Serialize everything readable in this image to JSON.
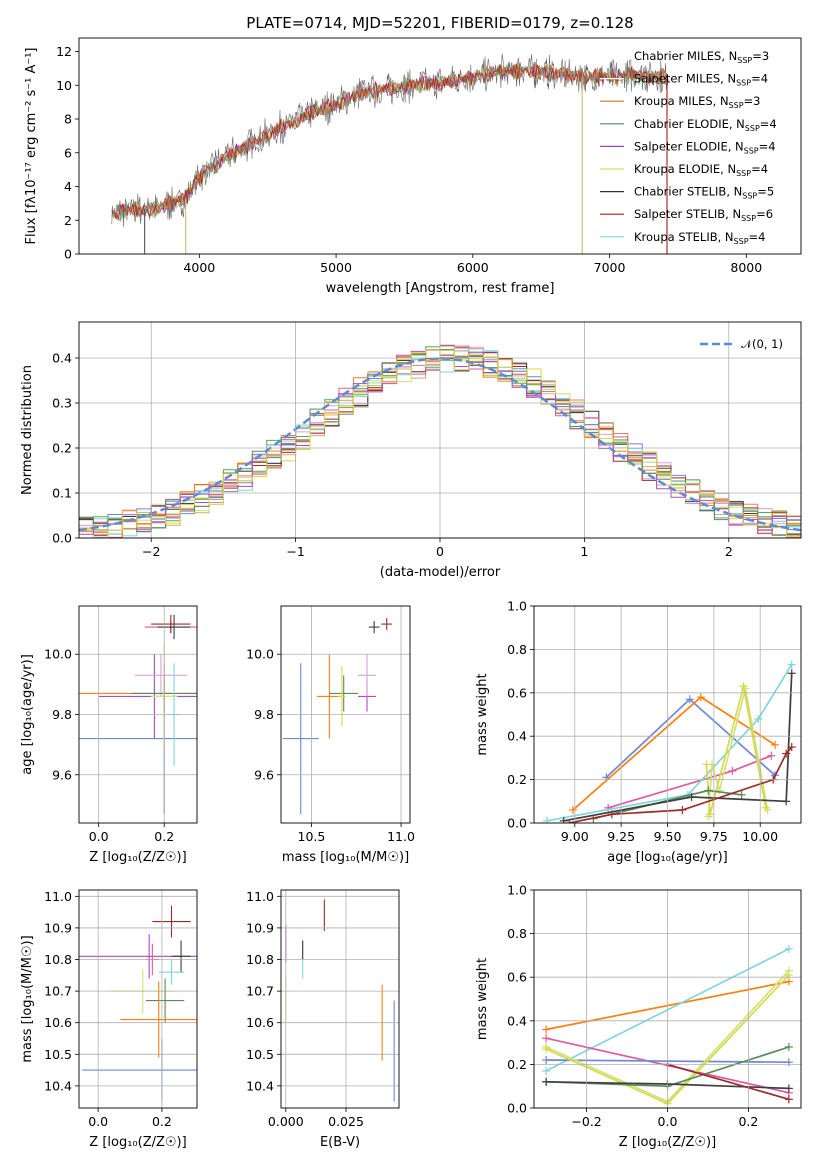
{
  "figure": {
    "title": "PLATE=0714, MJD=52201, FIBERID=0179, z=0.128"
  },
  "colors": {
    "series": [
      "#e08070",
      "#4caf50",
      "#6e87d8",
      "#d9a0d8",
      "#c9b458",
      "#9e2b2b",
      "#3f3f3f",
      "#e05aa0",
      "#7fd6dc",
      "#ff7f0e",
      "#d3e07a",
      "#5a8a5a",
      "#b04ac0",
      "#d8d84a"
    ],
    "legend_colors": [
      "#c07a2a",
      "#4e8a5c",
      "#9b47b3",
      "#d9d96a",
      "#333333",
      "#b01a1a",
      "#7fd6dc"
    ],
    "normal_line": "#5b8bd6"
  },
  "chart_data": [
    {
      "id": "spectrum",
      "type": "line",
      "title": "PLATE=0714, MJD=52201, FIBERID=0179, z=0.128",
      "xlabel": "wavelength [Angstrom, rest frame]",
      "ylabel_main": "Flux [f",
      "ylabel_sub": "λ",
      "ylabel_rest": "10⁻¹⁷ erg cm⁻² s⁻¹ A⁻¹]",
      "xlim": [
        3120,
        8400
      ],
      "ylim": [
        0,
        12.8
      ],
      "xticks": [
        4000,
        5000,
        6000,
        7000,
        8000
      ],
      "yticks": [
        0,
        2,
        4,
        6,
        8,
        10,
        12
      ],
      "grid": false,
      "legend_position": "top-right",
      "legend": [
        {
          "name": "Chabrier MILES, N",
          "sub": "SSP",
          "suffix": "=3"
        },
        {
          "name": "Salpeter MILES, N",
          "sub": "SSP",
          "suffix": "=4"
        },
        {
          "name": "Kroupa MILES, N",
          "sub": "SSP",
          "suffix": "=3"
        },
        {
          "name": "Chabrier ELODIE, N",
          "sub": "SSP",
          "suffix": "=4"
        },
        {
          "name": "Salpeter ELODIE, N",
          "sub": "SSP",
          "suffix": "=4"
        },
        {
          "name": "Kroupa ELODIE, N",
          "sub": "SSP",
          "suffix": "=4"
        },
        {
          "name": "Chabrier STELIB, N",
          "sub": "SSP",
          "suffix": "=5"
        },
        {
          "name": "Salpeter STELIB, N",
          "sub": "SSP",
          "suffix": "=6"
        },
        {
          "name": "Kroupa STELIB, N",
          "sub": "SSP",
          "suffix": "=4"
        }
      ],
      "continuum": [
        [
          3360,
          2.4
        ],
        [
          3500,
          2.6
        ],
        [
          3700,
          2.7
        ],
        [
          3900,
          3.3
        ],
        [
          4000,
          4.6
        ],
        [
          4200,
          5.8
        ],
        [
          4400,
          6.6
        ],
        [
          4600,
          7.5
        ],
        [
          4800,
          8.3
        ],
        [
          5000,
          8.9
        ],
        [
          5200,
          9.6
        ],
        [
          5400,
          9.8
        ],
        [
          5600,
          10.0
        ],
        [
          5800,
          10.2
        ],
        [
          6000,
          10.5
        ],
        [
          6200,
          10.8
        ],
        [
          6400,
          10.9
        ],
        [
          6600,
          10.7
        ],
        [
          6800,
          10.5
        ],
        [
          7000,
          10.5
        ],
        [
          7200,
          10.6
        ],
        [
          7430,
          10.5
        ]
      ],
      "spikes_down": [
        [
          3600,
          0.0
        ],
        [
          3900,
          0.0
        ],
        [
          6800,
          0.0
        ],
        [
          7420,
          0.0
        ]
      ]
    },
    {
      "id": "residual-histogram",
      "type": "histogram",
      "xlabel": "(data-model)/error",
      "ylabel": "Normed distribution",
      "xlim": [
        -2.5,
        2.5
      ],
      "ylim": [
        0,
        0.48
      ],
      "xticks": [
        -2,
        -1,
        0,
        1,
        2
      ],
      "yticks": [
        0.0,
        0.1,
        0.2,
        0.3,
        0.4
      ],
      "grid": true,
      "legend_position": "top-right",
      "legend_label": "𝒩(0, 1)",
      "bin_width": 0.1,
      "bin_start": -2.5,
      "series_offsets": [
        0.0,
        0.02,
        -0.015,
        0.01,
        -0.02,
        0.025,
        -0.01,
        0.015,
        -0.025,
        0.02,
        -0.005,
        0.012,
        0.006,
        -0.018
      ]
    },
    {
      "id": "age-vs-metallicity",
      "type": "errorbar",
      "xlabel": "Z [log₁₀(Z/Z☉)]",
      "ylabel": "age  [log₁₀(age/yr)]",
      "xlim": [
        -0.06,
        0.3
      ],
      "ylim": [
        9.44,
        10.16
      ],
      "xticks": [
        0.0,
        0.2
      ],
      "yticks": [
        9.6,
        9.8,
        10.0
      ],
      "grid": true,
      "points": [
        {
          "x": 0.22,
          "y": 10.09,
          "xerr": 0.08,
          "yerr": 0.02,
          "c": 7
        },
        {
          "x": 0.22,
          "y": 10.1,
          "xerr": 0.06,
          "yerr": 0.03,
          "c": 5
        },
        {
          "x": 0.2,
          "y": 9.72,
          "xerr": 0.28,
          "yerr": 0.25,
          "c": 2
        },
        {
          "x": 0.2,
          "y": 9.87,
          "xerr": 0.28,
          "yerr": 0.06,
          "c": 9
        },
        {
          "x": 0.17,
          "y": 9.86,
          "xerr": 0.17,
          "yerr": 0.14,
          "c": 12
        },
        {
          "x": 0.19,
          "y": 9.93,
          "xerr": 0.08,
          "yerr": 0.07,
          "c": 3
        },
        {
          "x": 0.2,
          "y": 9.87,
          "xerr": 0.1,
          "yerr": 0.06,
          "c": 11
        },
        {
          "x": 0.23,
          "y": 9.8,
          "xerr": 0.02,
          "yerr": 0.17,
          "c": 8
        },
        {
          "x": 0.2,
          "y": 9.86,
          "xerr": 0.04,
          "yerr": 0.18,
          "c": 10
        },
        {
          "x": 0.23,
          "y": 10.09,
          "xerr": 0.05,
          "yerr": 0.04,
          "c": 6
        }
      ]
    },
    {
      "id": "age-vs-mass",
      "type": "errorbar",
      "xlabel": "mass [log₁₀(M/M☉)]",
      "ylabel": "",
      "xlim": [
        10.33,
        11.05
      ],
      "ylim": [
        9.44,
        10.16
      ],
      "xticks": [
        10.5,
        11.0
      ],
      "yticks": [
        9.6,
        9.8,
        10.0
      ],
      "grid": true,
      "points": [
        {
          "x": 10.44,
          "y": 9.72,
          "xerr": 0.1,
          "yerr": 0.25,
          "c": 2
        },
        {
          "x": 10.6,
          "y": 9.86,
          "xerr": 0.07,
          "yerr": 0.14,
          "c": 9
        },
        {
          "x": 10.68,
          "y": 9.87,
          "xerr": 0.08,
          "yerr": 0.06,
          "c": 11
        },
        {
          "x": 10.81,
          "y": 9.86,
          "xerr": 0.05,
          "yerr": 0.05,
          "c": 12
        },
        {
          "x": 10.81,
          "y": 9.93,
          "xerr": 0.05,
          "yerr": 0.07,
          "c": 3
        },
        {
          "x": 10.92,
          "y": 10.1,
          "xerr": 0.03,
          "yerr": 0.02,
          "c": 5
        },
        {
          "x": 10.85,
          "y": 10.09,
          "xerr": 0.03,
          "yerr": 0.02,
          "c": 6
        },
        {
          "x": 10.67,
          "y": 9.86,
          "xerr": 0.02,
          "yerr": 0.1,
          "c": 13
        }
      ]
    },
    {
      "id": "mass-weight-vs-age",
      "type": "line",
      "xlabel": "age  [log₁₀(age/yr)]",
      "ylabel": "mass weight",
      "xlim": [
        8.78,
        10.22
      ],
      "ylim": [
        0.0,
        1.0
      ],
      "xticks": [
        9.0,
        9.25,
        9.5,
        9.75,
        10.0
      ],
      "yticks": [
        0.0,
        0.2,
        0.4,
        0.6,
        0.8,
        1.0
      ],
      "grid": true,
      "series": [
        {
          "c": 2,
          "pts": [
            [
              9.17,
              0.21
            ],
            [
              9.62,
              0.57
            ],
            [
              10.08,
              0.22
            ]
          ]
        },
        {
          "c": 9,
          "pts": [
            [
              8.99,
              0.06
            ],
            [
              9.68,
              0.58
            ],
            [
              10.08,
              0.36
            ]
          ]
        },
        {
          "c": 7,
          "pts": [
            [
              9.18,
              0.07
            ],
            [
              9.85,
              0.24
            ],
            [
              10.06,
              0.31
            ]
          ]
        },
        {
          "c": 8,
          "pts": [
            [
              8.85,
              0.01
            ],
            [
              9.61,
              0.13
            ],
            [
              9.99,
              0.48
            ],
            [
              10.17,
              0.73
            ]
          ]
        },
        {
          "c": 10,
          "pts": [
            [
              9.72,
              0.03
            ],
            [
              9.74,
              0.27
            ],
            [
              9.78,
              0.15
            ],
            [
              9.92,
              0.62
            ],
            [
              10.04,
              0.06
            ]
          ]
        },
        {
          "c": 13,
          "pts": [
            [
              9.71,
              0.27
            ],
            [
              9.73,
              0.04
            ],
            [
              9.91,
              0.63
            ],
            [
              10.03,
              0.07
            ]
          ]
        },
        {
          "c": 11,
          "pts": [
            [
              9.1,
              0.02
            ],
            [
              9.72,
              0.15
            ],
            [
              9.9,
              0.13
            ]
          ]
        },
        {
          "c": 6,
          "pts": [
            [
              8.94,
              0.01
            ],
            [
              9.63,
              0.12
            ],
            [
              10.14,
              0.1
            ],
            [
              10.17,
              0.69
            ]
          ]
        },
        {
          "c": 5,
          "pts": [
            [
              8.97,
              0.0
            ],
            [
              9.2,
              0.04
            ],
            [
              9.58,
              0.06
            ],
            [
              10.07,
              0.2
            ],
            [
              10.14,
              0.32
            ],
            [
              10.17,
              0.35
            ]
          ]
        }
      ]
    },
    {
      "id": "mass-vs-metallicity",
      "type": "errorbar",
      "xlabel": "Z [log₁₀(Z/Z☉)]",
      "ylabel": "mass [log₁₀(M/M☉)]",
      "xlim": [
        -0.06,
        0.31
      ],
      "ylim": [
        10.33,
        11.02
      ],
      "xticks": [
        0.0,
        0.2
      ],
      "yticks": [
        10.4,
        10.5,
        10.6,
        10.7,
        10.8,
        10.9,
        11.0
      ],
      "grid": true,
      "points": [
        {
          "x": 0.23,
          "y": 10.92,
          "xerr": 0.06,
          "yerr": 0.05,
          "c": 5
        },
        {
          "x": 0.16,
          "y": 10.81,
          "xerr": 0.22,
          "yerr": 0.07,
          "c": 12
        },
        {
          "x": 0.17,
          "y": 10.8,
          "xerr": 0.02,
          "yerr": 0.05,
          "c": 7
        },
        {
          "x": 0.26,
          "y": 10.81,
          "xerr": 0.03,
          "yerr": 0.05,
          "c": 6
        },
        {
          "x": 0.14,
          "y": 10.7,
          "xerr": 0.1,
          "yerr": 0.07,
          "c": 10
        },
        {
          "x": 0.21,
          "y": 10.67,
          "xerr": 0.06,
          "yerr": 0.07,
          "c": 11
        },
        {
          "x": 0.19,
          "y": 10.61,
          "xerr": 0.12,
          "yerr": 0.12,
          "c": 9
        },
        {
          "x": 0.2,
          "y": 10.45,
          "xerr": 0.25,
          "yerr": 0.1,
          "c": 2
        },
        {
          "x": 0.23,
          "y": 10.76,
          "xerr": 0.04,
          "yerr": 0.04,
          "c": 8
        }
      ]
    },
    {
      "id": "mass-vs-ebv",
      "type": "errorbar",
      "xlabel": "E(B-V)",
      "ylabel": "",
      "xlim": [
        -0.002,
        0.047
      ],
      "ylim": [
        10.33,
        11.02
      ],
      "xticks": [
        0.0,
        0.025
      ],
      "xtick_labels": [
        "0.000",
        "0.025"
      ],
      "yticks": [
        10.4,
        10.5,
        10.6,
        10.7,
        10.8,
        10.9,
        11.0
      ],
      "grid": true,
      "points": [
        {
          "x": 0.016,
          "y": 10.94,
          "xerr": 0.0,
          "yerr": 0.05,
          "c": 5
        },
        {
          "x": 0.0,
          "y": 10.85,
          "xerr": 0.0,
          "yerr": 0.06,
          "c": 12
        },
        {
          "x": 0.007,
          "y": 10.8,
          "xerr": 0.0,
          "yerr": 0.06,
          "c": 8
        },
        {
          "x": 0.007,
          "y": 10.83,
          "xerr": 0.0,
          "yerr": 0.03,
          "c": 6
        },
        {
          "x": 0.0,
          "y": 10.68,
          "xerr": 0.0,
          "yerr": 0.07,
          "c": 10
        },
        {
          "x": 0.04,
          "y": 10.6,
          "xerr": 0.0,
          "yerr": 0.12,
          "c": 9
        },
        {
          "x": 0.045,
          "y": 10.51,
          "xerr": 0.0,
          "yerr": 0.16,
          "c": 2
        }
      ]
    },
    {
      "id": "mass-weight-vs-metallicity",
      "type": "line",
      "xlabel": "Z [log₁₀(Z/Z☉)]",
      "ylabel": "mass weight",
      "xlim": [
        -0.33,
        0.33
      ],
      "ylim": [
        0.0,
        1.0
      ],
      "xticks": [
        -0.2,
        0.0,
        0.2
      ],
      "yticks": [
        0.0,
        0.2,
        0.4,
        0.6,
        0.8,
        1.0
      ],
      "grid": true,
      "series": [
        {
          "c": 9,
          "pts": [
            [
              -0.3,
              0.36
            ],
            [
              0.3,
              0.58
            ]
          ]
        },
        {
          "c": 8,
          "pts": [
            [
              -0.3,
              0.17
            ],
            [
              0.3,
              0.73
            ]
          ]
        },
        {
          "c": 7,
          "pts": [
            [
              -0.3,
              0.32
            ],
            [
              0.3,
              0.07
            ]
          ]
        },
        {
          "c": 2,
          "pts": [
            [
              -0.3,
              0.22
            ],
            [
              0.3,
              0.21
            ]
          ]
        },
        {
          "c": 10,
          "pts": [
            [
              -0.3,
              0.28
            ],
            [
              0.0,
              0.03
            ],
            [
              0.3,
              0.63
            ]
          ]
        },
        {
          "c": 13,
          "pts": [
            [
              -0.3,
              0.27
            ],
            [
              0.0,
              0.02
            ],
            [
              0.3,
              0.61
            ]
          ]
        },
        {
          "c": 11,
          "pts": [
            [
              -0.3,
              0.12
            ],
            [
              0.0,
              0.1
            ],
            [
              0.3,
              0.28
            ]
          ]
        },
        {
          "c": 6,
          "pts": [
            [
              -0.3,
              0.12
            ],
            [
              0.0,
              0.11
            ],
            [
              0.3,
              0.09
            ]
          ]
        },
        {
          "c": 5,
          "pts": [
            [
              0.0,
              0.2
            ],
            [
              0.3,
              0.04
            ]
          ]
        }
      ]
    }
  ]
}
